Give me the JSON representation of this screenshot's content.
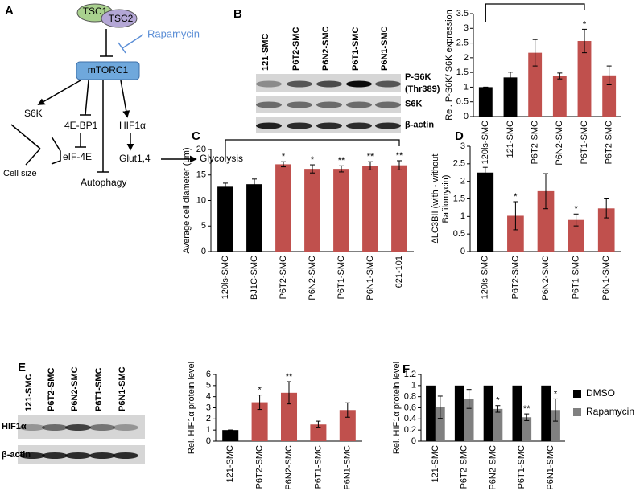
{
  "panel_labels": [
    "A",
    "B",
    "C",
    "D",
    "E",
    "F"
  ],
  "diagram": {
    "nodes": [
      "TSC1",
      "TSC2",
      "Rapamycin",
      "mTORC1",
      "S6K",
      "4E-BP1",
      "eIF-4E",
      "HIF1α",
      "Glut1,4",
      "Glycolysis",
      "Autophagy",
      "Cell size"
    ]
  },
  "blots": [
    {
      "lanes": [
        "121-SMC",
        "P6T2-SMC",
        "P6N2-SMC",
        "P6T1-SMC",
        "P6N1-SMC"
      ],
      "rows": [
        [
          "P-S6K",
          "(Thr389)"
        ],
        [
          "S6K"
        ],
        [
          "β-actin"
        ]
      ]
    },
    {
      "lanes": [
        "121-SMC",
        "P6T2-SMC",
        "P6N2-SMC",
        "P6T1-SMC",
        "P6N1-SMC"
      ],
      "rows": [
        [
          "HIF1α"
        ],
        [
          "β-actin"
        ]
      ]
    }
  ],
  "chart_data": [
    {
      "type": "bar",
      "ylabel": "Rel. P-S6K/ S6K expression",
      "categories": [
        "120ls-SMC",
        "121-SMC",
        "P6T2-SMC",
        "P6N2-SMC",
        "P6T1-SMC",
        "P6T2-SMC"
      ],
      "values": [
        1,
        1.33,
        2.17,
        1.38,
        2.57,
        1.4
      ],
      "errors": [
        0,
        0.18,
        0.45,
        0.1,
        0.4,
        0.32
      ],
      "colors": [
        "#000000",
        "#000000",
        "#c0504d",
        "#c0504d",
        "#c0504d",
        "#c0504d"
      ],
      "value_annotations": [
        null,
        null,
        null,
        null,
        "*",
        null
      ],
      "ylim": [
        0,
        3.5
      ],
      "yticks": [
        0,
        0.5,
        1,
        1.5,
        2,
        2.5,
        3,
        3.5
      ]
    },
    {
      "type": "bar",
      "ylabel": "Average cell diameter (μm)",
      "categories": [
        "120ls-SMC",
        "BJ1C-SMC",
        "P6T2-SMC",
        "P6N2-SMC",
        "P6T1-SMC",
        "P6N1-SMC",
        "621-101"
      ],
      "values": [
        12.7,
        13.2,
        17.1,
        16.2,
        16.2,
        16.8,
        16.9
      ],
      "errors": [
        0.7,
        1.0,
        0.5,
        0.8,
        0.6,
        0.8,
        0.9
      ],
      "colors": [
        "#000000",
        "#000000",
        "#c0504d",
        "#c0504d",
        "#c0504d",
        "#c0504d",
        "#c0504d"
      ],
      "value_annotations": [
        null,
        null,
        "*",
        "*",
        "**",
        "**",
        "**"
      ],
      "ylim": [
        0,
        20
      ],
      "yticks": [
        0,
        5,
        10,
        15,
        20
      ]
    },
    {
      "type": "bar",
      "ylabel": [
        "ΔLC3BII (with - without",
        "Bafilomycin)"
      ],
      "categories": [
        "120ls-SMC",
        "P6T2-SMC",
        "P6N2-SMC",
        "P6T1-SMC",
        "P6N1-SMC"
      ],
      "values": [
        2.25,
        1.02,
        1.72,
        0.9,
        1.23
      ],
      "errors": [
        0.15,
        0.4,
        0.5,
        0.17,
        0.27
      ],
      "colors": [
        "#000000",
        "#c0504d",
        "#c0504d",
        "#c0504d",
        "#c0504d"
      ],
      "value_annotations": [
        null,
        "*",
        null,
        "*",
        null
      ],
      "ylim": [
        0,
        3
      ],
      "yticks": [
        0,
        0.5,
        1,
        1.5,
        2,
        2.5,
        3
      ]
    },
    {
      "type": "bar",
      "ylabel": "Rel. HIF1α protein level",
      "categories": [
        "121-SMC",
        "P6T2-SMC",
        "P6N2-SMC",
        "P6T1-SMC",
        "P6N1-SMC"
      ],
      "values": [
        1,
        3.5,
        4.35,
        1.5,
        2.8
      ],
      "errors": [
        0,
        0.65,
        1.0,
        0.3,
        0.65
      ],
      "colors": [
        "#000000",
        "#c0504d",
        "#c0504d",
        "#c0504d",
        "#c0504d"
      ],
      "value_annotations": [
        null,
        "*",
        "**",
        null,
        null
      ],
      "ylim": [
        0,
        6
      ],
      "yticks": [
        0,
        1,
        2,
        3,
        4,
        5,
        6
      ]
    },
    {
      "type": "bar",
      "ylabel": "Rel. HIF1α protein level",
      "categories": [
        "121-SMC",
        "P6T2-SMC",
        "P6N2-SMC",
        "P6T1-SMC",
        "P6N1-SMC"
      ],
      "series": [
        {
          "name": "DMSO",
          "color": "#000000",
          "values": [
            1,
            1,
            1,
            1,
            1
          ]
        },
        {
          "name": "Rapamycin",
          "color": "#808080",
          "values": [
            0.61,
            0.76,
            0.58,
            0.43,
            0.56
          ],
          "errors": [
            0.2,
            0.17,
            0.06,
            0.06,
            0.2
          ],
          "value_annotations": [
            null,
            null,
            "*",
            "**",
            "*"
          ]
        }
      ],
      "legend": "right",
      "ylim": [
        0,
        1.2
      ],
      "yticks": [
        0,
        0.2,
        0.4,
        0.6,
        0.8,
        1,
        1.2
      ]
    }
  ]
}
